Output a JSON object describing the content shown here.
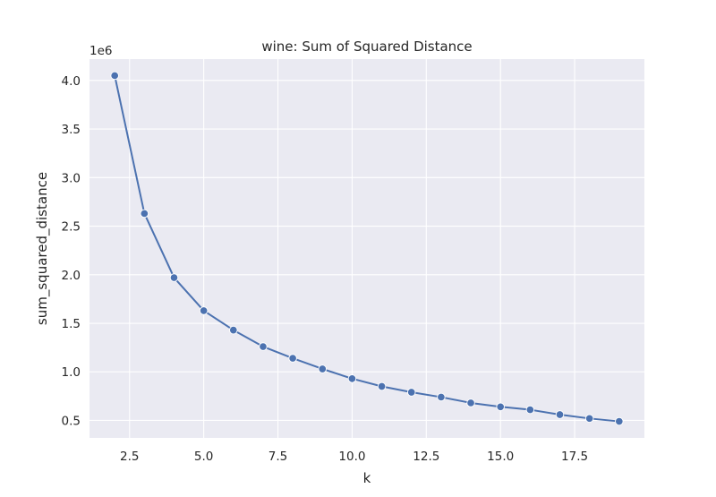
{
  "chart_data": {
    "type": "line",
    "title": "wine: Sum of Squared Distance",
    "xlabel": "k",
    "ylabel": "sum_squared_distance",
    "y_offset_label": "1e6",
    "xlim": [
      1.15,
      19.85
    ],
    "ylim": [
      0.32,
      4.22
    ],
    "x_ticks": [
      2.5,
      5.0,
      7.5,
      10.0,
      12.5,
      15.0,
      17.5
    ],
    "x_tick_labels": [
      "2.5",
      "5.0",
      "7.5",
      "10.0",
      "12.5",
      "15.0",
      "17.5"
    ],
    "y_ticks": [
      0.5,
      1.0,
      1.5,
      2.0,
      2.5,
      3.0,
      3.5,
      4.0
    ],
    "y_tick_labels": [
      "0.5",
      "1.0",
      "1.5",
      "2.0",
      "2.5",
      "3.0",
      "3.5",
      "4.0"
    ],
    "grid": true,
    "background_color": "#eaeaf2",
    "grid_color": "#ffffff",
    "series": [
      {
        "color": "#4c72b0",
        "marker": "circle",
        "x": [
          2,
          3,
          4,
          5,
          6,
          7,
          8,
          9,
          10,
          11,
          12,
          13,
          14,
          15,
          16,
          17,
          18,
          19
        ],
        "y": [
          4.05,
          2.63,
          1.97,
          1.63,
          1.43,
          1.26,
          1.14,
          1.03,
          0.93,
          0.85,
          0.79,
          0.74,
          0.68,
          0.64,
          0.61,
          0.56,
          0.52,
          0.49
        ]
      }
    ]
  }
}
